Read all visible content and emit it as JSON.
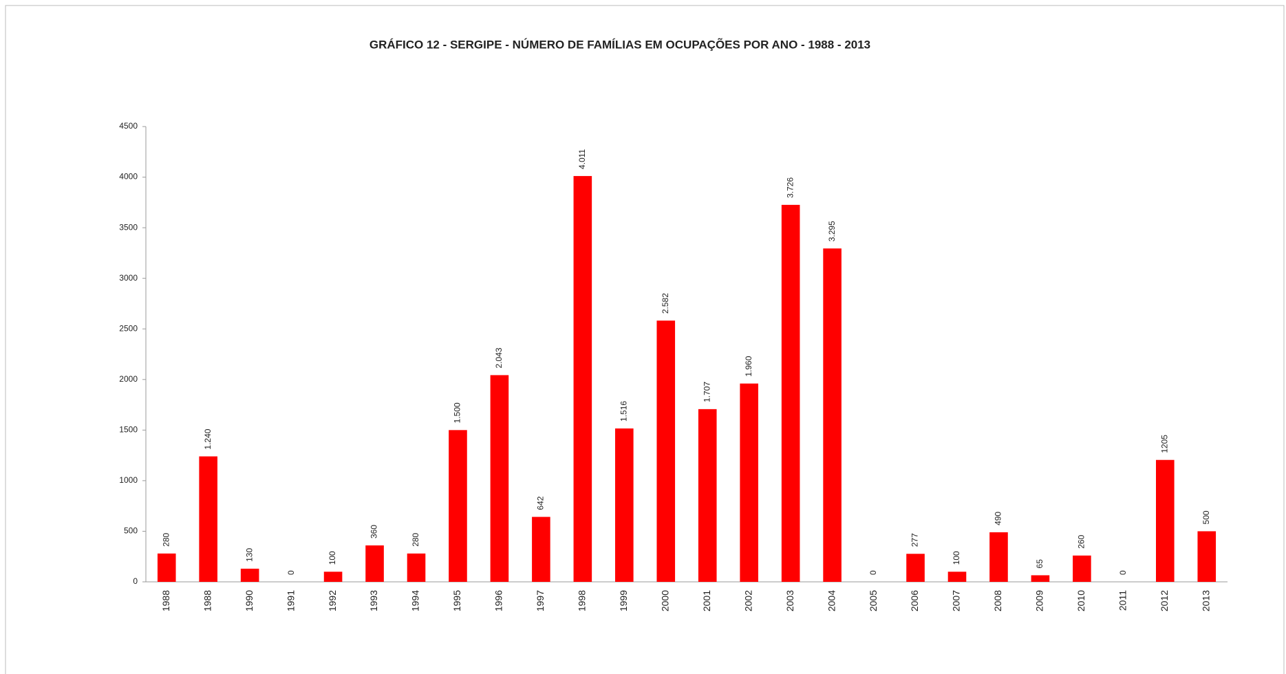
{
  "chart_data": {
    "type": "bar",
    "title": "GRÁFICO 12 - SERGIPE - NÚMERO DE FAMÍLIAS EM OCUPAÇÕES POR ANO - 1988 -  2013",
    "categories": [
      "1988",
      "1988",
      "1990",
      "1991",
      "1992",
      "1993",
      "1994",
      "1995",
      "1996",
      "1997",
      "1998",
      "1999",
      "2000",
      "2001",
      "2002",
      "2003",
      "2004",
      "2005",
      "2006",
      "2007",
      "2008",
      "2009",
      "2010",
      "2011",
      "2012",
      "2013"
    ],
    "values": [
      280,
      1240,
      130,
      0,
      100,
      360,
      280,
      1500,
      2043,
      642,
      4011,
      1516,
      2582,
      1707,
      1960,
      3726,
      3295,
      0,
      277,
      100,
      490,
      65,
      260,
      0,
      1205,
      500
    ],
    "value_labels": [
      "280",
      "1.240",
      "130",
      "0",
      "100",
      "360",
      "280",
      "1.500",
      "2.043",
      "642",
      "4.011",
      "1.516",
      "2.582",
      "1.707",
      "1.960",
      "3.726",
      "3.295",
      "0",
      "277",
      "100",
      "490",
      "65",
      "260",
      "0",
      "1205",
      "500"
    ],
    "color": "#ff0000",
    "ylim": [
      0,
      4500
    ],
    "yticks": [
      0,
      500,
      1000,
      1500,
      2000,
      2500,
      3000,
      3500,
      4000,
      4500
    ],
    "grid": false
  }
}
